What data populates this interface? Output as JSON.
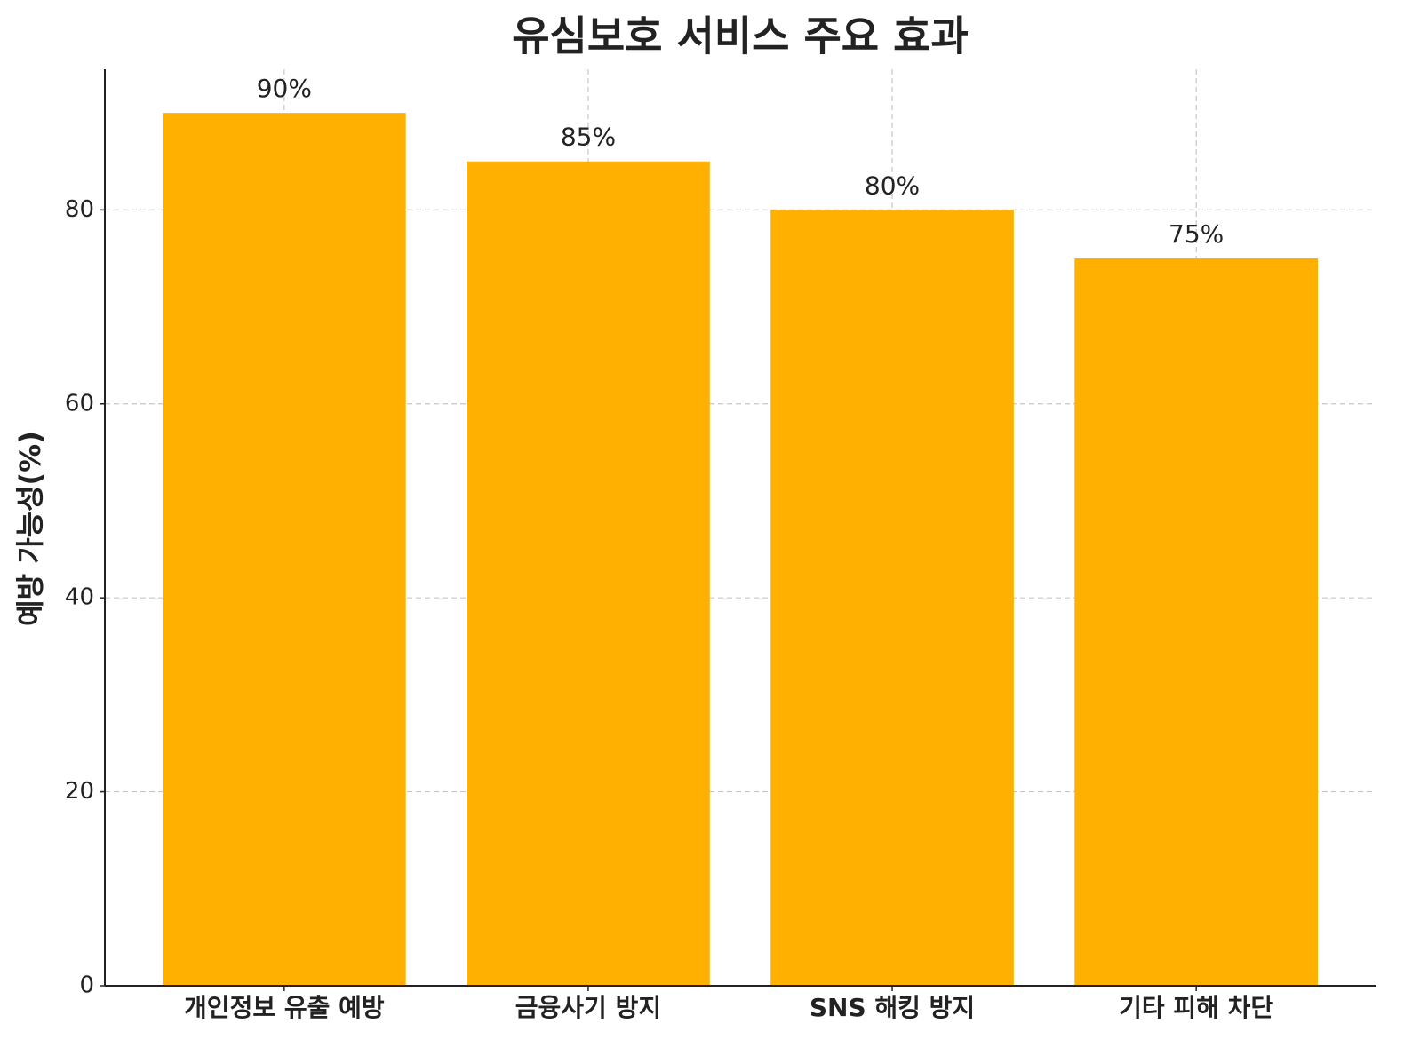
{
  "chart_data": {
    "type": "bar",
    "title": "유심보호 서비스 주요 효과",
    "y_label": "예방 가능성(%)",
    "categories": [
      "개인정보 유출 예방",
      "금융사기 방지",
      "SNS 해킹 방지",
      "기타 피해 차단"
    ],
    "values": [
      90,
      85,
      80,
      75
    ],
    "value_labels": [
      "90%",
      "85%",
      "80%",
      "75%"
    ],
    "color": "#ffb000",
    "ylim": [
      0,
      94.5
    ],
    "yticks": [
      0,
      20,
      40,
      60,
      80
    ],
    "grid": true
  }
}
